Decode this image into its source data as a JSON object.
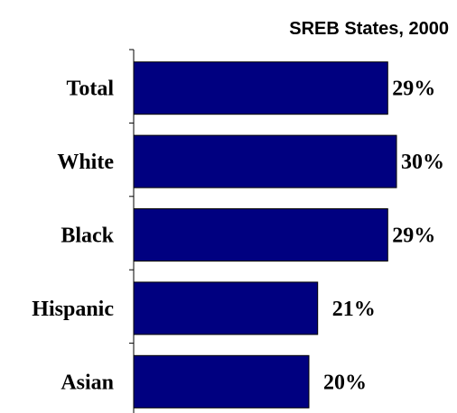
{
  "chart_data": {
    "type": "bar",
    "orientation": "horizontal",
    "title": "SREB States, 2000",
    "categories": [
      "Total",
      "White",
      "Black",
      "Hispanic",
      "Asian"
    ],
    "values": [
      29,
      30,
      29,
      21,
      20
    ],
    "value_labels": [
      "29%",
      "30%",
      "29%",
      "21%",
      "20%"
    ],
    "unit": "%",
    "bar_color": "#000080",
    "xlim": [
      0,
      30
    ],
    "grid": false,
    "legend": "none"
  }
}
